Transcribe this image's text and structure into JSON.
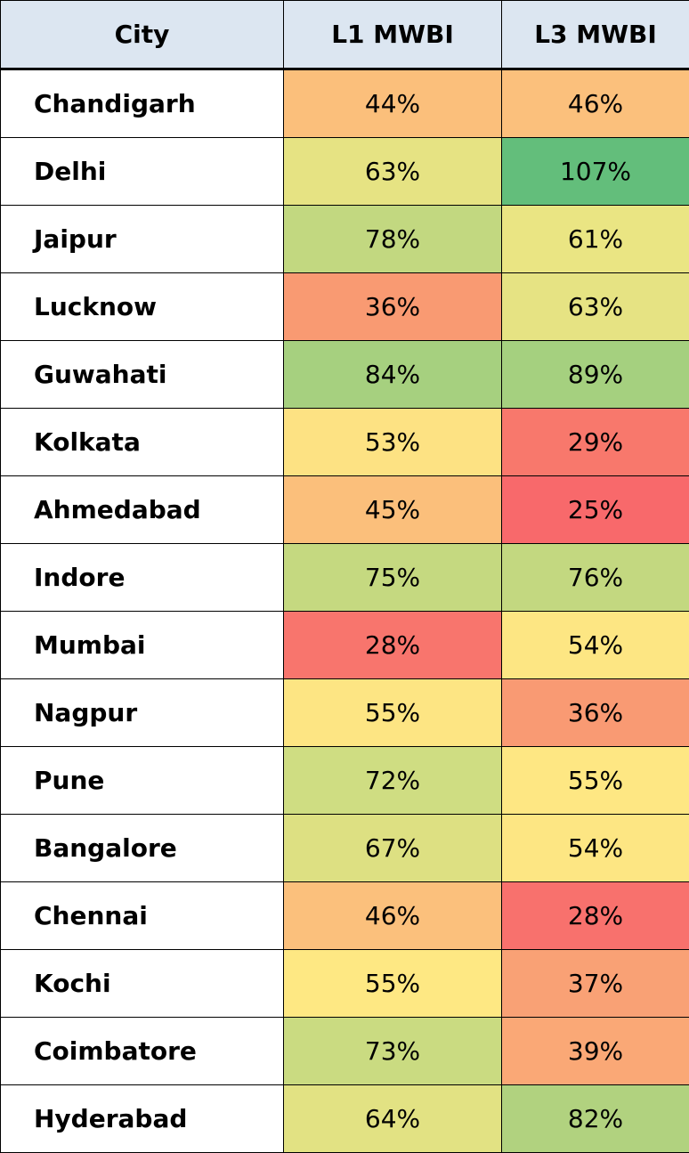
{
  "chart_data": {
    "type": "table",
    "columns": [
      "City",
      "L1 MWBI",
      "L3 MWBI"
    ],
    "rows": [
      {
        "city": "Chandigarh",
        "l1": "44%",
        "l3": "46%",
        "l1_color": "#fbbf7b",
        "l3_color": "#fbc07c"
      },
      {
        "city": "Delhi",
        "l1": "63%",
        "l3": "107%",
        "l1_color": "#e6e383",
        "l3_color": "#63be7b"
      },
      {
        "city": "Jaipur",
        "l1": "78%",
        "l3": "61%",
        "l1_color": "#c2d880",
        "l3_color": "#eae583"
      },
      {
        "city": "Lucknow",
        "l1": "36%",
        "l3": "63%",
        "l1_color": "#f99a72",
        "l3_color": "#e6e383"
      },
      {
        "city": "Guwahati",
        "l1": "84%",
        "l3": "89%",
        "l1_color": "#a6d07f",
        "l3_color": "#a5d07f"
      },
      {
        "city": "Kolkata",
        "l1": "53%",
        "l3": "29%",
        "l1_color": "#fde283",
        "l3_color": "#f8786c"
      },
      {
        "city": "Ahmedabad",
        "l1": "45%",
        "l3": "25%",
        "l1_color": "#fbbf7b",
        "l3_color": "#f8696b"
      },
      {
        "city": "Indore",
        "l1": "75%",
        "l3": "76%",
        "l1_color": "#c5d980",
        "l3_color": "#c3d880"
      },
      {
        "city": "Mumbai",
        "l1": "28%",
        "l3": "54%",
        "l1_color": "#f8756d",
        "l3_color": "#fde683"
      },
      {
        "city": "Nagpur",
        "l1": "55%",
        "l3": "36%",
        "l1_color": "#fde583",
        "l3_color": "#f99a73"
      },
      {
        "city": "Pune",
        "l1": "72%",
        "l3": "55%",
        "l1_color": "#cfdd82",
        "l3_color": "#fee783"
      },
      {
        "city": "Bangalore",
        "l1": "67%",
        "l3": "54%",
        "l1_color": "#dde082",
        "l3_color": "#fde683"
      },
      {
        "city": "Chennai",
        "l1": "46%",
        "l3": "28%",
        "l1_color": "#fbc07c",
        "l3_color": "#f8716d"
      },
      {
        "city": "Kochi",
        "l1": "55%",
        "l3": "37%",
        "l1_color": "#fee883",
        "l3_color": "#f9a175"
      },
      {
        "city": "Coimbatore",
        "l1": "73%",
        "l3": "39%",
        "l1_color": "#cadb81",
        "l3_color": "#faa876"
      },
      {
        "city": "Hyderabad",
        "l1": "64%",
        "l3": "82%",
        "l1_color": "#e2e283",
        "l3_color": "#b1d27f"
      }
    ]
  },
  "colors": {
    "header_bg": "#dce6f1",
    "border": "#000000",
    "city_bg": "#ffffff"
  }
}
